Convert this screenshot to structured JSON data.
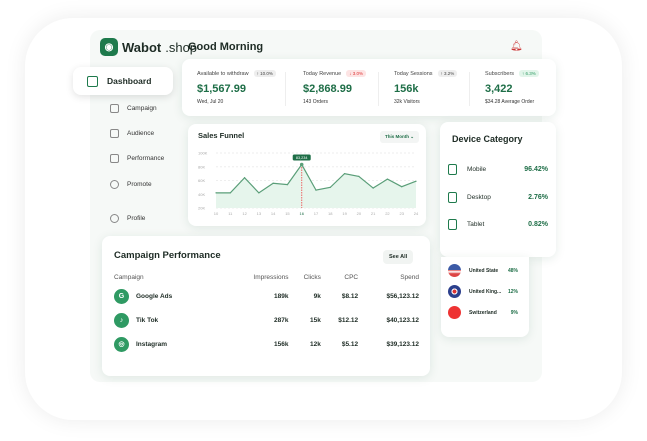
{
  "brand": {
    "name": "Wabot",
    "suffix": ".shop"
  },
  "header": {
    "greeting": "Good Morning"
  },
  "sidebar": {
    "active": "Dashboard",
    "items": [
      {
        "label": "Campaign"
      },
      {
        "label": "Audience"
      },
      {
        "label": "Performance"
      },
      {
        "label": "Promote"
      },
      {
        "label": "Profile"
      }
    ]
  },
  "stats": [
    {
      "label": "Available to withdraw",
      "badge": "↑ 10.0%",
      "value": "$1,567.99",
      "sub": "Wed, Jul 20"
    },
    {
      "label": "Today Revenue",
      "badge": "↓ 3.0%",
      "value": "$2,868.99",
      "sub": "143 Orders"
    },
    {
      "label": "Today Sessions",
      "badge": "↑ 3.2%",
      "value": "156k",
      "sub": "32k Visitors"
    },
    {
      "label": "Subscribers",
      "badge": "↑ 6.3%",
      "value": "3,422",
      "sub": "$34.28 Average Order"
    }
  ],
  "funnel": {
    "title": "Sales Funnel",
    "range": "This Month",
    "tooltip": "83,234"
  },
  "chart_data": {
    "type": "area",
    "x": [
      10,
      11,
      12,
      13,
      14,
      15,
      16,
      17,
      18,
      19,
      20,
      21,
      22,
      23,
      24
    ],
    "values": [
      42000,
      42000,
      64000,
      42000,
      56000,
      54000,
      83234,
      46000,
      50000,
      70000,
      66000,
      49000,
      62000,
      51000,
      59000
    ],
    "yticks": [
      "20K",
      "40K",
      "60K",
      "80K",
      "100K"
    ],
    "ylim": [
      20000,
      100000
    ],
    "highlight_x": 16,
    "color": "#5a9e78"
  },
  "device": {
    "title": "Device Category",
    "items": [
      {
        "label": "Mobile",
        "value": "96.42%"
      },
      {
        "label": "Desktop",
        "value": "2.76%"
      },
      {
        "label": "Tablet",
        "value": "0.82%"
      }
    ]
  },
  "countries": [
    {
      "name": "United State",
      "value": "48%"
    },
    {
      "name": "United King...",
      "value": "12%"
    },
    {
      "name": "Switzerland",
      "value": "9%"
    }
  ],
  "campaign": {
    "title": "Campaign Performance",
    "see_all": "See All",
    "columns": [
      "Campaign",
      "Impressions",
      "Clicks",
      "CPC",
      "Spend"
    ],
    "rows": [
      [
        "Google Ads",
        "189k",
        "9k",
        "$8.12",
        "$56,123.12"
      ],
      [
        "Tik Tok",
        "287k",
        "15k",
        "$12.12",
        "$40,123.12"
      ],
      [
        "Instagram",
        "156k",
        "12k",
        "$5.12",
        "$39,123.12"
      ]
    ]
  }
}
